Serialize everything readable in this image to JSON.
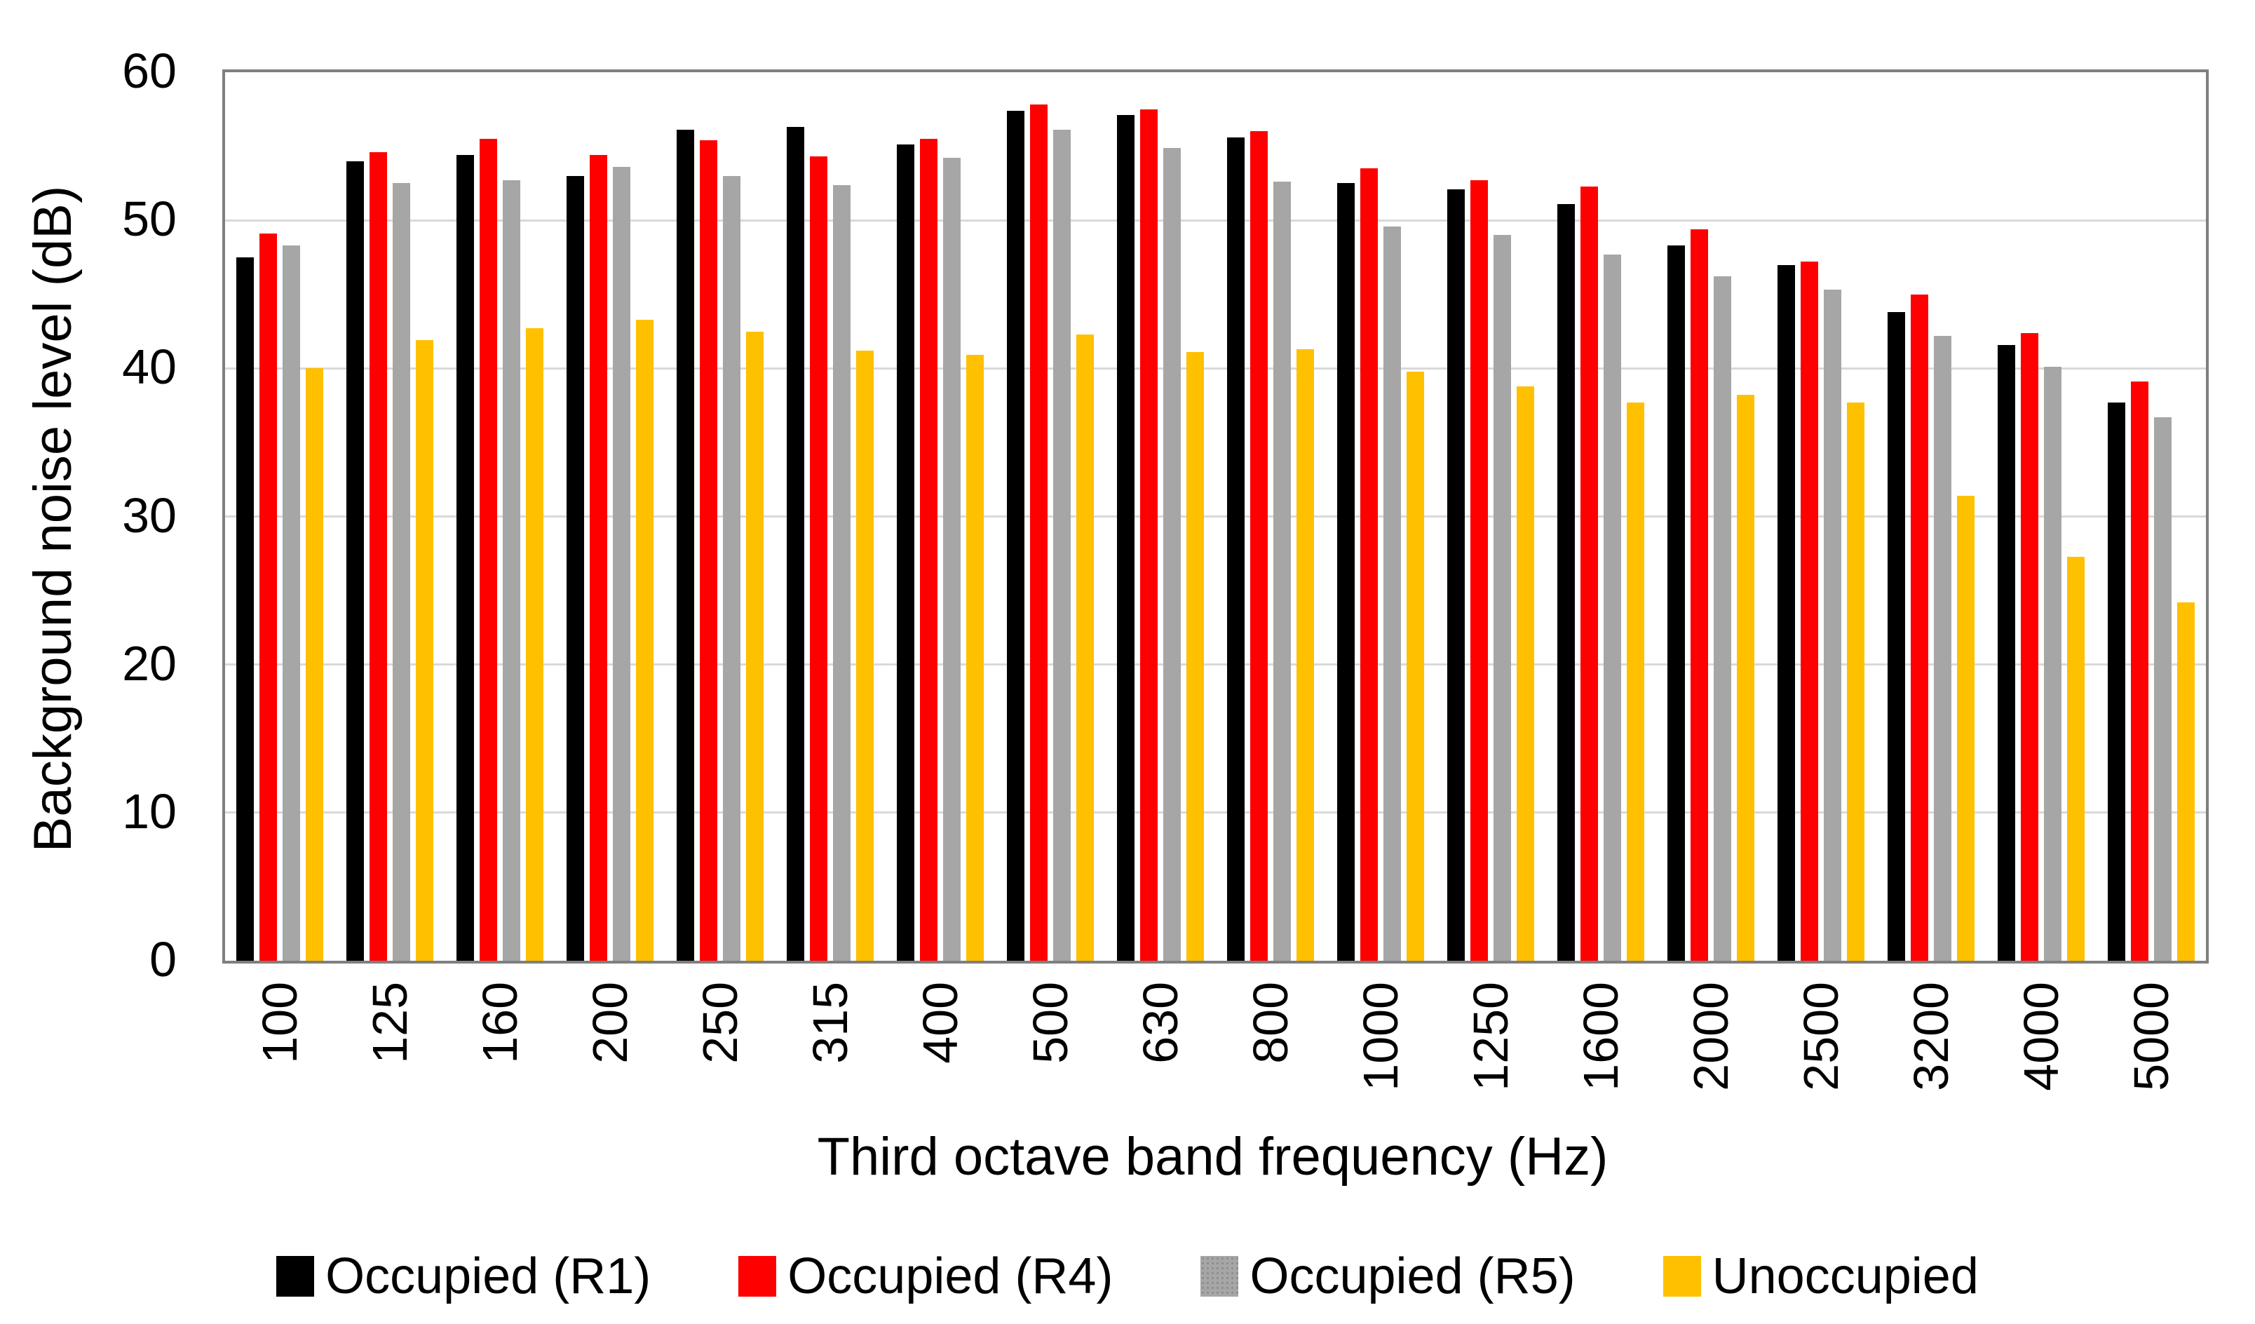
{
  "figure": {
    "background": "#ffffff"
  },
  "colors": {
    "frame": "#7f7f7f",
    "gridline": "#d9d9d9",
    "text": "#000000",
    "series_r1": "#000000",
    "series_r4": "#ff0000",
    "series_r5": "#a6a6a6",
    "series_unoccupied": "#ffc000"
  },
  "chart_data": {
    "type": "bar",
    "title": "",
    "xlabel": "Third octave band frequency (Hz)",
    "ylabel": "Background noise level (dB)",
    "ylim": [
      0,
      60
    ],
    "yticks": [
      0,
      10,
      20,
      30,
      40,
      50,
      60
    ],
    "grid": "horizontal-only",
    "legend_position": "bottom",
    "x_tick_rotation_deg": 90,
    "categories": [
      "100",
      "125",
      "160",
      "200",
      "250",
      "315",
      "400",
      "500",
      "630",
      "800",
      "1000",
      "1250",
      "1600",
      "2000",
      "2500",
      "3200",
      "4000",
      "5000"
    ],
    "series": [
      {
        "name": "Occupied (R1)",
        "color": "#000000",
        "pattern": "solid",
        "values": [
          47.5,
          54.0,
          54.4,
          53.0,
          56.1,
          56.3,
          55.1,
          57.4,
          57.1,
          55.6,
          52.5,
          52.1,
          51.1,
          48.3,
          47.0,
          43.8,
          41.6,
          37.7
        ]
      },
      {
        "name": "Occupied (R4)",
        "color": "#ff0000",
        "pattern": "solid",
        "values": [
          49.1,
          54.6,
          55.5,
          54.4,
          55.4,
          54.3,
          55.5,
          57.8,
          57.5,
          56.0,
          53.5,
          52.7,
          52.3,
          49.4,
          47.2,
          45.0,
          42.4,
          39.1
        ]
      },
      {
        "name": "Occupied (R5)",
        "color": "#a6a6a6",
        "pattern": "dots",
        "values": [
          48.3,
          52.5,
          52.7,
          53.6,
          53.0,
          52.4,
          54.2,
          56.1,
          54.9,
          52.6,
          49.6,
          49.0,
          47.7,
          46.2,
          45.3,
          42.2,
          40.1,
          36.7
        ]
      },
      {
        "name": "Unoccupied",
        "color": "#ffc000",
        "pattern": "solid",
        "values": [
          40.0,
          41.9,
          42.7,
          43.3,
          42.5,
          41.2,
          40.9,
          42.3,
          41.1,
          41.3,
          39.8,
          38.8,
          37.7,
          38.2,
          37.7,
          31.4,
          27.3,
          24.2
        ]
      }
    ]
  }
}
